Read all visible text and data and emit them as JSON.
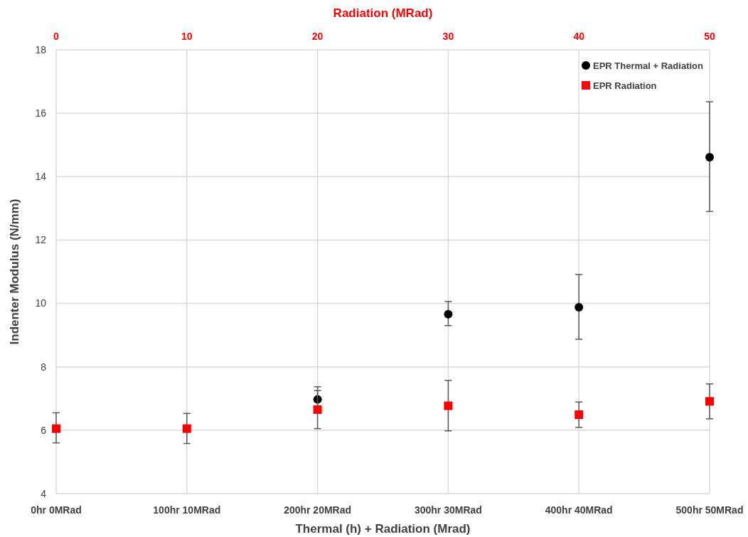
{
  "chart_data": {
    "type": "scatter",
    "xlabel": "Thermal (h) + Radiation (Mrad)",
    "ylabel": "Indenter Modulus (N/mm)",
    "x2label": "Radiation (MRad)",
    "categories": [
      "0hr 0MRad",
      "100hr 10MRad",
      "200hr 20MRad",
      "300hr 30MRad",
      "400hr 40MRad",
      "500hr 50MRad"
    ],
    "ylim": [
      4,
      18
    ],
    "yticks": [
      4,
      6,
      8,
      10,
      12,
      14,
      16,
      18
    ],
    "x2lim": [
      0,
      50
    ],
    "x2ticks": [
      0,
      10,
      20,
      30,
      40,
      50
    ],
    "series": [
      {
        "name": "EPR Thermal + Radiation",
        "color": "#000000",
        "marker": "circle",
        "values": [
          null,
          null,
          6.97,
          9.66,
          9.88,
          14.61
        ],
        "errors": [
          null,
          null,
          [
            6.57,
            7.37
          ],
          [
            9.3,
            10.06
          ],
          [
            8.87,
            10.91
          ],
          [
            12.9,
            16.36
          ]
        ]
      },
      {
        "name": "EPR Radiation",
        "color": "#ff0000",
        "marker": "square",
        "values": [
          6.05,
          6.05,
          6.65,
          6.77,
          6.49,
          6.91
        ],
        "errors": [
          [
            5.6,
            6.55
          ],
          [
            5.58,
            6.53
          ],
          [
            6.05,
            7.25
          ],
          [
            5.98,
            7.57
          ],
          [
            6.09,
            6.89
          ],
          [
            6.36,
            7.46
          ]
        ]
      }
    ],
    "grid": true,
    "legend": "top right"
  }
}
